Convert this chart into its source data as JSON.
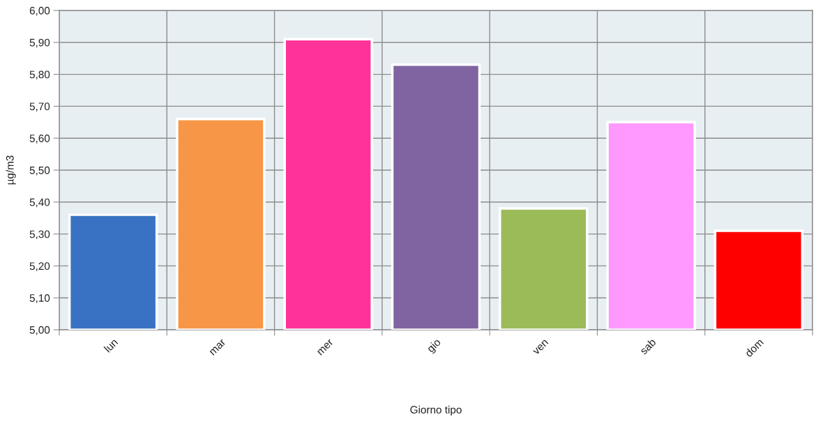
{
  "chart_data": {
    "type": "bar",
    "xlabel": "Giorno tipo",
    "ylabel": "µg/m3",
    "categories": [
      "lun",
      "mar",
      "mer",
      "gio",
      "ven",
      "sab",
      "dom"
    ],
    "values": [
      5.36,
      5.66,
      5.91,
      5.83,
      5.38,
      5.65,
      5.31
    ],
    "colors": [
      "#3972c2",
      "#f79646",
      "#ff3399",
      "#8064a2",
      "#9bbb59",
      "#ff99ff",
      "#ff0000"
    ],
    "ylim": [
      5,
      6
    ],
    "yticks": [
      {
        "value": 5,
        "label": "5,00"
      },
      {
        "value": 5.1,
        "label": "5,10"
      },
      {
        "value": 5.2,
        "label": "5,20"
      },
      {
        "value": 5.3,
        "label": "5,30"
      },
      {
        "value": 5.4,
        "label": "5,40"
      },
      {
        "value": 5.5,
        "label": "5,50"
      },
      {
        "value": 5.6,
        "label": "5,60"
      },
      {
        "value": 5.7,
        "label": "5,70"
      },
      {
        "value": 5.8,
        "label": "5,80"
      },
      {
        "value": 5.9,
        "label": "5,90"
      },
      {
        "value": 6,
        "label": "6,00"
      }
    ],
    "grid": true
  }
}
